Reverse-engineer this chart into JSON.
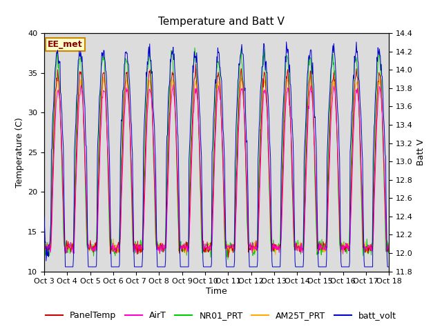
{
  "title": "Temperature and Batt V",
  "xlabel": "Time",
  "ylabel_left": "Temperature (C)",
  "ylabel_right": "Batt V",
  "ylim_left": [
    10,
    40
  ],
  "ylim_right": [
    11.8,
    14.4
  ],
  "x_tick_labels": [
    "Oct 3",
    "Oct 4",
    "Oct 5",
    "Oct 6",
    "Oct 7",
    "Oct 8",
    "Oct 9",
    "Oct 10",
    "Oct 11",
    "Oct 12",
    "Oct 13",
    "Oct 14",
    "Oct 15",
    "Oct 16",
    "Oct 17",
    "Oct 18"
  ],
  "legend_label": "EE_met",
  "series_names": [
    "PanelTemp",
    "AirT",
    "NR01_PRT",
    "AM25T_PRT",
    "batt_volt"
  ],
  "series_colors": [
    "#cc0000",
    "#ff00cc",
    "#00cc00",
    "#ffaa00",
    "#0000cc"
  ],
  "background_color": "#dcdcdc",
  "title_fontsize": 11,
  "axis_fontsize": 9,
  "tick_fontsize": 8,
  "legend_fontsize": 9,
  "n_days": 15,
  "pts_per_day": 48
}
